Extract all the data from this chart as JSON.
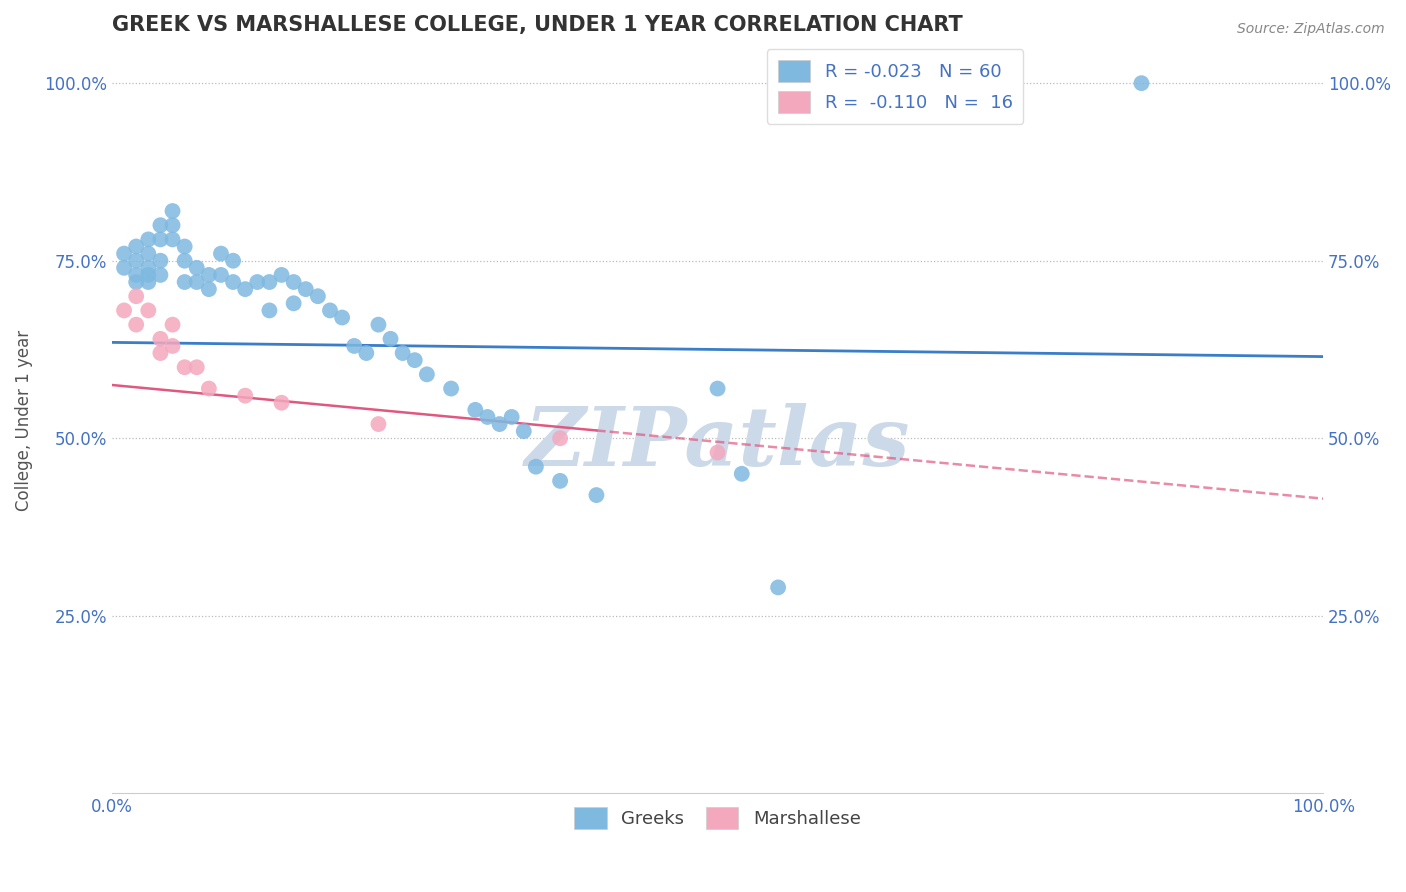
{
  "title": "GREEK VS MARSHALLESE COLLEGE, UNDER 1 YEAR CORRELATION CHART",
  "source": "Source: ZipAtlas.com",
  "ylabel": "College, Under 1 year",
  "xlim": [
    0.0,
    1.0
  ],
  "ylim": [
    0.0,
    1.05
  ],
  "xtick_labels": [
    "0.0%",
    "100.0%"
  ],
  "ytick_labels": [
    "25.0%",
    "50.0%",
    "75.0%",
    "100.0%"
  ],
  "ytick_positions": [
    0.25,
    0.5,
    0.75,
    1.0
  ],
  "legend_r1": "-0.023",
  "legend_n1": "60",
  "legend_r2": "-0.110",
  "legend_n2": "16",
  "blue_color": "#7fb9e0",
  "pink_color": "#f4a8be",
  "trend_blue": "#3a7dc9",
  "trend_pink": "#e05880",
  "title_color": "#333333",
  "axis_label_color": "#555555",
  "tick_color": "#4472c4",
  "watermark": "ZIPatlas",
  "watermark_color": "#ccd9e8",
  "greek_x": [
    0.01,
    0.01,
    0.02,
    0.02,
    0.02,
    0.02,
    0.03,
    0.03,
    0.03,
    0.03,
    0.03,
    0.04,
    0.04,
    0.04,
    0.04,
    0.05,
    0.05,
    0.05,
    0.06,
    0.06,
    0.06,
    0.07,
    0.07,
    0.08,
    0.08,
    0.09,
    0.09,
    0.1,
    0.1,
    0.11,
    0.12,
    0.13,
    0.13,
    0.14,
    0.15,
    0.15,
    0.16,
    0.17,
    0.18,
    0.19,
    0.2,
    0.21,
    0.22,
    0.23,
    0.24,
    0.25,
    0.26,
    0.28,
    0.3,
    0.31,
    0.32,
    0.33,
    0.34,
    0.35,
    0.37,
    0.4,
    0.5,
    0.52,
    0.55,
    0.85
  ],
  "greek_y": [
    0.76,
    0.74,
    0.77,
    0.75,
    0.73,
    0.72,
    0.78,
    0.76,
    0.74,
    0.73,
    0.72,
    0.8,
    0.78,
    0.75,
    0.73,
    0.82,
    0.8,
    0.78,
    0.77,
    0.75,
    0.72,
    0.74,
    0.72,
    0.73,
    0.71,
    0.76,
    0.73,
    0.75,
    0.72,
    0.71,
    0.72,
    0.72,
    0.68,
    0.73,
    0.72,
    0.69,
    0.71,
    0.7,
    0.68,
    0.67,
    0.63,
    0.62,
    0.66,
    0.64,
    0.62,
    0.61,
    0.59,
    0.57,
    0.54,
    0.53,
    0.52,
    0.53,
    0.51,
    0.46,
    0.44,
    0.42,
    0.57,
    0.45,
    0.29,
    1.0
  ],
  "marshallese_x": [
    0.01,
    0.02,
    0.02,
    0.03,
    0.04,
    0.04,
    0.05,
    0.05,
    0.06,
    0.07,
    0.08,
    0.11,
    0.14,
    0.22,
    0.37,
    0.5
  ],
  "marshallese_y": [
    0.68,
    0.7,
    0.66,
    0.68,
    0.64,
    0.62,
    0.66,
    0.63,
    0.6,
    0.6,
    0.57,
    0.56,
    0.55,
    0.52,
    0.5,
    0.48
  ],
  "blue_trend_y0": 0.635,
  "blue_trend_y1": 0.615,
  "pink_trend_y0": 0.575,
  "pink_trend_y1": 0.415
}
